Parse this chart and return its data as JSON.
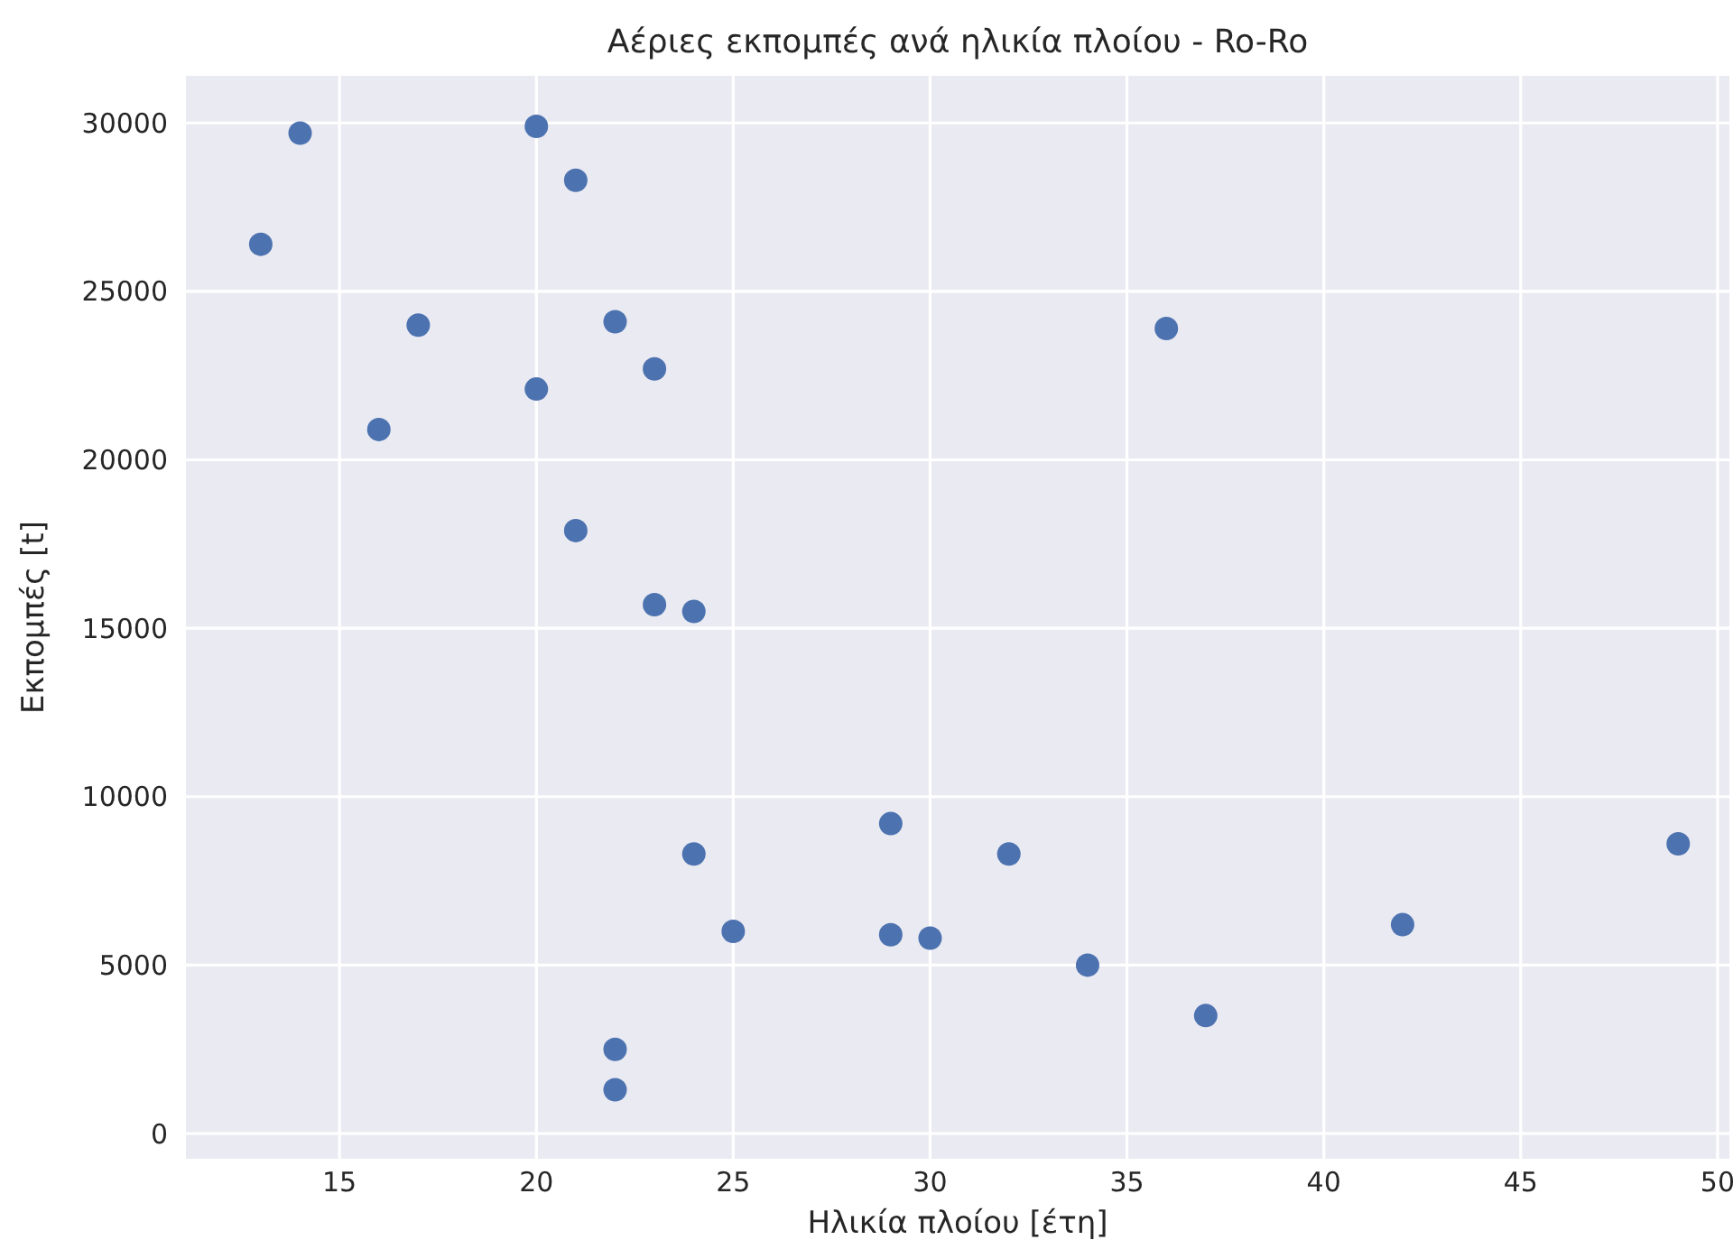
{
  "chart_data": {
    "type": "scatter",
    "title": "Αέριες εκπομπές ανά ηλικία πλοίου - Ro-Ro",
    "xlabel": "Ηλικία πλοίου [έτη]",
    "ylabel": "Εκπομπές [t]",
    "x": [
      13,
      14,
      16,
      17,
      20,
      20,
      21,
      21,
      22,
      22,
      22,
      23,
      23,
      24,
      24,
      25,
      29,
      29,
      30,
      32,
      34,
      36,
      37,
      42,
      49
    ],
    "series": [
      {
        "color": "#4c72b0",
        "values": [
          26400,
          29700,
          20900,
          24000,
          29900,
          22100,
          28300,
          17900,
          24100,
          2500,
          1300,
          22700,
          15700,
          15500,
          8300,
          6000,
          9200,
          5900,
          5800,
          8300,
          5000,
          23900,
          3500,
          6200,
          8600
        ]
      }
    ],
    "xlim": [
      11.1,
      50.3
    ],
    "ylim": [
      -750,
      31400
    ],
    "xticks": [
      15,
      20,
      25,
      30,
      35,
      40,
      45,
      50
    ],
    "yticks": [
      0,
      5000,
      10000,
      15000,
      20000,
      25000,
      30000
    ],
    "grid": true,
    "marker": "circle"
  }
}
